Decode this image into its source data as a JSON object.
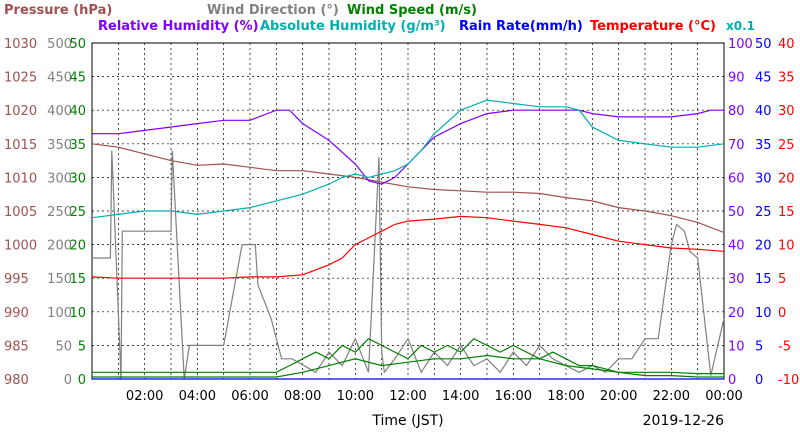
{
  "legend": [
    {
      "label": "Pressure (hPa)",
      "color": "#a05050"
    },
    {
      "label": "Wind Direction (°)",
      "color": "#808080"
    },
    {
      "label": "Wind Speed (m/s)",
      "color": "#008000"
    },
    {
      "label": "Relative Humidity (%)",
      "color": "#8000ff"
    },
    {
      "label": "Absolute Humidity (g/m³)",
      "color": "#00b0b0"
    },
    {
      "label": "Rain Rate(mm/h)",
      "color": "#0000ff"
    },
    {
      "label": "Temperature (°C)",
      "color": "#ff0000"
    }
  ],
  "abs_humidity_scale_note": "x0.1",
  "xlabel": "Time (JST)",
  "date": "2019-12-26",
  "chart_data": {
    "type": "line",
    "x_ticks": [
      "02:00",
      "04:00",
      "06:00",
      "08:00",
      "10:00",
      "12:00",
      "14:00",
      "16:00",
      "18:00",
      "20:00",
      "22:00",
      "00:00"
    ],
    "x_range_hours": [
      0,
      24
    ],
    "grid": true,
    "axes": {
      "pressure": {
        "min": 980,
        "max": 1030,
        "ticks": [
          "980",
          "985",
          "990",
          "995",
          "1000",
          "1005",
          "1010",
          "1015",
          "1020",
          "1025",
          "1030"
        ],
        "color": "#a05050"
      },
      "wind_direction": {
        "min": 0,
        "max": 500,
        "ticks": [
          "0",
          "50",
          "100",
          "150",
          "200",
          "250",
          "300",
          "350",
          "400",
          "450",
          "500"
        ],
        "color": "#808080"
      },
      "wind_speed": {
        "min": 0,
        "max": 50,
        "ticks": [
          "0",
          "5",
          "10",
          "15",
          "20",
          "25",
          "30",
          "35",
          "40",
          "45",
          "50"
        ],
        "color": "#008000"
      },
      "humidity": {
        "min": 0,
        "max": 100,
        "ticks": [
          "0",
          "10",
          "20",
          "30",
          "40",
          "50",
          "60",
          "70",
          "80",
          "90",
          "100"
        ],
        "color": "#8000ff"
      },
      "rain_rate": {
        "min": 0,
        "max": 50,
        "ticks": [
          "0",
          "5",
          "10",
          "15",
          "20",
          "25",
          "30",
          "35",
          "40",
          "45",
          "50"
        ],
        "color": "#0000ff"
      },
      "temperature": {
        "min": -10,
        "max": 40,
        "ticks": [
          "-10",
          "-5",
          "0",
          "5",
          "10",
          "15",
          "20",
          "25",
          "30",
          "35",
          "40"
        ],
        "color": "#ff0000"
      }
    },
    "series": [
      {
        "name": "Pressure (hPa)",
        "axis": "pressure",
        "color": "#a05050",
        "x": [
          0,
          1,
          2,
          3,
          4,
          5,
          6,
          7,
          8,
          9,
          10,
          11,
          12,
          13,
          14,
          15,
          16,
          17,
          18,
          19,
          20,
          21,
          22,
          23,
          24
        ],
        "y": [
          1015,
          1014.5,
          1013.5,
          1012.5,
          1011.8,
          1012,
          1011.5,
          1011,
          1011,
          1010.5,
          1010,
          1009.3,
          1008.6,
          1008.2,
          1008,
          1007.8,
          1007.8,
          1007.6,
          1007,
          1006.5,
          1005.5,
          1005,
          1004.3,
          1003.3,
          1001.8
        ]
      },
      {
        "name": "Wind Direction (°)",
        "axis": "wind_direction",
        "color": "#808080",
        "x": [
          0,
          0.7,
          0.75,
          1.1,
          1.15,
          1.6,
          3,
          3.05,
          3.5,
          3.7,
          4.2,
          5,
          5.7,
          6.2,
          6.3,
          6.8,
          7.2,
          7.6,
          8.5,
          9,
          9.5,
          10,
          10.5,
          10.9,
          11,
          11.1,
          11.5,
          12,
          12.5,
          13,
          13.5,
          14,
          14.5,
          15,
          15.5,
          16,
          16.5,
          17,
          17.5,
          18,
          18.5,
          19,
          19.5,
          20,
          20.5,
          21,
          21.5,
          22,
          22.2,
          22.5,
          22.7,
          23,
          23.5,
          24
        ],
        "y": [
          180,
          180,
          340,
          0,
          220,
          220,
          220,
          340,
          0,
          50,
          50,
          50,
          200,
          200,
          140,
          90,
          30,
          30,
          10,
          40,
          20,
          60,
          10,
          330,
          40,
          10,
          30,
          60,
          10,
          40,
          20,
          50,
          20,
          30,
          10,
          40,
          20,
          50,
          30,
          20,
          10,
          20,
          10,
          30,
          30,
          60,
          60,
          200,
          230,
          220,
          190,
          180,
          5,
          90
        ]
      },
      {
        "name": "Wind Speed (m/s)",
        "axis": "wind_speed",
        "color": "#008000",
        "x": [
          0,
          2,
          4,
          6,
          7,
          8,
          9,
          10,
          11,
          12,
          13,
          14,
          15,
          16,
          17,
          18,
          19,
          20,
          21,
          22,
          23,
          24
        ],
        "y": [
          0.3,
          0.3,
          0.3,
          0.3,
          0.3,
          1,
          2,
          3,
          2,
          2.5,
          3,
          3,
          3.5,
          3,
          3,
          2,
          1.5,
          1,
          0.5,
          0.5,
          0.3,
          0.3
        ]
      },
      {
        "name": "Wind Speed max",
        "axis": "wind_speed",
        "color": "#008000",
        "x": [
          0,
          2,
          4,
          6,
          7,
          7.5,
          8,
          8.5,
          9,
          9.5,
          10,
          10.5,
          11,
          11.5,
          12,
          12.5,
          13,
          13.5,
          14,
          14.5,
          15,
          15.5,
          16,
          16.5,
          17,
          17.5,
          18,
          18.5,
          19,
          19.5,
          20,
          21,
          22,
          23,
          24
        ],
        "y": [
          1,
          1,
          1,
          1,
          1,
          2,
          3,
          4,
          3,
          5,
          4,
          6,
          5,
          4,
          3,
          5,
          4,
          5,
          4,
          6,
          5,
          4,
          5,
          4,
          3,
          4,
          3,
          2,
          2,
          1.5,
          1,
          1,
          1,
          0.8,
          0.8
        ]
      },
      {
        "name": "Relative Humidity (%)",
        "axis": "humidity",
        "color": "#8000ff",
        "x": [
          0,
          0.5,
          1,
          2,
          3,
          4,
          5,
          6,
          7,
          7.5,
          8,
          9,
          10,
          10.5,
          11,
          11.5,
          12,
          12.5,
          13,
          14,
          15,
          16,
          17,
          18,
          18.5,
          19,
          20,
          21,
          22,
          23,
          23.5,
          24
        ],
        "y": [
          73,
          73,
          73,
          74,
          75,
          76,
          77,
          77,
          80,
          80,
          76,
          71,
          64,
          59,
          58,
          60,
          64,
          68,
          72,
          76,
          79,
          80,
          80,
          80,
          80,
          79,
          78,
          78,
          78,
          79,
          80,
          80
        ]
      },
      {
        "name": "Absolute Humidity (g/m³) x0.1",
        "axis": "humidity",
        "color": "#00b0b0",
        "x": [
          0,
          1,
          2,
          3,
          4,
          5,
          6,
          7,
          8,
          9,
          9.5,
          10,
          10.5,
          11,
          11.5,
          12,
          12.5,
          13,
          14,
          15,
          16,
          17,
          18,
          18.5,
          19,
          20,
          21,
          22,
          23,
          24
        ],
        "y": [
          48,
          49,
          50,
          50,
          49,
          50,
          51,
          53,
          55,
          58,
          60,
          61,
          60,
          61,
          62,
          64,
          68,
          73,
          80,
          83,
          82,
          81,
          81,
          80,
          75,
          71,
          70,
          69,
          69,
          70
        ]
      },
      {
        "name": "Rain Rate(mm/h)",
        "axis": "rain_rate",
        "color": "#0000ff",
        "x": [
          0,
          24
        ],
        "y": [
          0,
          0
        ]
      },
      {
        "name": "Temperature (°C)",
        "axis": "temperature",
        "color": "#ff0000",
        "x": [
          0,
          1,
          2,
          3,
          4,
          5,
          6,
          7,
          8,
          9,
          9.5,
          10,
          10.5,
          11,
          11.5,
          12,
          13,
          14,
          15,
          16,
          17,
          18,
          19,
          20,
          21,
          22,
          23,
          24
        ],
        "y": [
          5.2,
          5,
          5,
          5,
          5,
          5,
          5.2,
          5.2,
          5.5,
          7,
          8,
          10,
          11,
          12,
          13,
          13.5,
          13.8,
          14.2,
          14,
          13.5,
          13,
          12.5,
          11.5,
          10.5,
          10,
          9.5,
          9.3,
          9
        ]
      }
    ]
  }
}
